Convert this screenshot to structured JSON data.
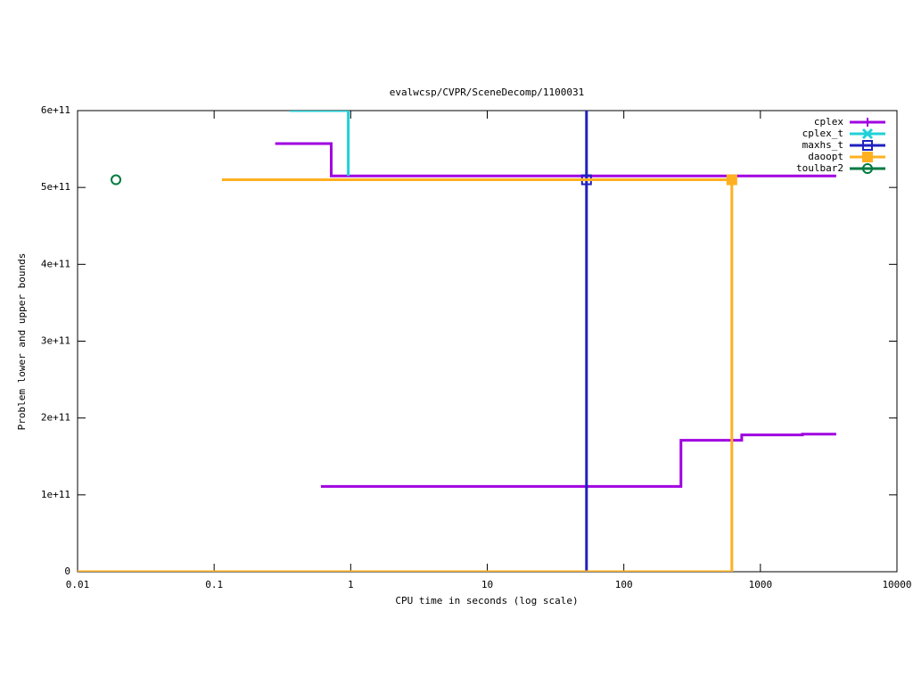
{
  "chart_data": {
    "type": "line",
    "title": "evalwcsp/CVPR/SceneDecomp/1100031",
    "x_label": "CPU time in seconds (log scale)",
    "y_label": "Problem lower and upper bounds",
    "xlog": true,
    "xlim": [
      0.01,
      10000
    ],
    "xticks": [
      0.01,
      0.1,
      1,
      10,
      100,
      1000,
      10000
    ],
    "ylim": [
      0,
      600000000000
    ],
    "yticks": [
      0,
      {
        "value": 100000000000,
        "label": "1e+11"
      },
      {
        "value": 200000000000,
        "label": "2e+11"
      },
      {
        "value": 300000000000,
        "label": "3e+11"
      },
      {
        "value": 400000000000,
        "label": "4e+11"
      },
      {
        "value": 500000000000,
        "label": "5e+11"
      },
      {
        "value": 600000000000,
        "label": "6e+11"
      }
    ],
    "legend": "top-right",
    "series": [
      {
        "name": "cplex",
        "color": "#a000e0",
        "marker": "plus",
        "x": [
          0.28,
          0.72,
          0.72,
          3590,
          null,
          0.605,
          262,
          262,
          730,
          730,
          2030,
          2030,
          3590
        ],
        "values": [
          557000000000,
          557000000000,
          515000000000,
          515000000000,
          null,
          111000000000,
          111000000000,
          171000000000,
          171000000000,
          178000000000,
          178000000000,
          179000000000,
          179000000000
        ]
      },
      {
        "name": "cplex_t",
        "color": "#20d0d8",
        "marker": "cross",
        "x": [
          0.357,
          0.96,
          0.96
        ],
        "values": [
          600000000000,
          600000000000,
          515000000000
        ]
      },
      {
        "name": "maxhs_t",
        "color": "#2020c0",
        "marker": "square-open",
        "x": [
          53.3,
          53.3
        ],
        "values": [
          0,
          600000000000
        ],
        "points": {
          "x": [
            53.3
          ],
          "values": [
            510000000000
          ]
        }
      },
      {
        "name": "daoopt",
        "color": "#ffb020",
        "marker": "square",
        "x": [
          0.114,
          618,
          618,
          null,
          0.01,
          618
        ],
        "values": [
          510000000000,
          510000000000,
          0,
          null,
          0,
          0
        ],
        "points": {
          "x": [
            618
          ],
          "values": [
            510000000000
          ]
        }
      },
      {
        "name": "toulbar2",
        "color": "#007a40",
        "marker": "circle-open",
        "x": [],
        "values": [],
        "points": {
          "x": [
            0.0191
          ],
          "values": [
            510000000000
          ]
        }
      }
    ]
  }
}
